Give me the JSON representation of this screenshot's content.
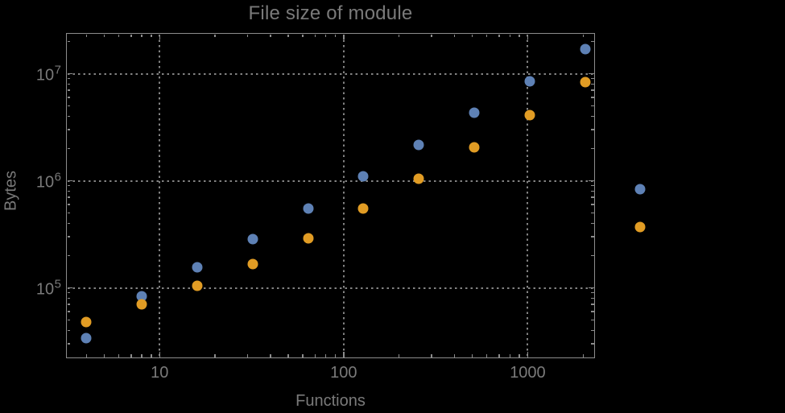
{
  "chart_data": {
    "type": "scatter",
    "title": "File size of module",
    "xlabel": "Functions",
    "ylabel": "Bytes",
    "xscale": "log",
    "yscale": "log",
    "xlim": [
      3.1,
      2320
    ],
    "ylim": [
      22000,
      24000000
    ],
    "grid": "dotted gridlines at decade ticks only",
    "legend": "none",
    "background_color": "#000000",
    "frame_color": "#8c8c8c",
    "grid_color": "#828282",
    "text_color": "#7a7a7a",
    "x_axis": {
      "major_ticks": [
        {
          "value": 10,
          "label": "10"
        },
        {
          "value": 100,
          "label": "100"
        },
        {
          "value": 1000,
          "label": "1000"
        }
      ],
      "minor_ticks": [
        4,
        5,
        6,
        7,
        8,
        9,
        20,
        30,
        40,
        50,
        60,
        70,
        80,
        90,
        200,
        300,
        400,
        500,
        600,
        700,
        800,
        900,
        2000
      ]
    },
    "y_axis": {
      "major_ticks": [
        {
          "value": 100000,
          "mantissa": "10",
          "exponent": "5"
        },
        {
          "value": 1000000,
          "mantissa": "10",
          "exponent": "6"
        },
        {
          "value": 10000000,
          "mantissa": "10",
          "exponent": "7"
        }
      ],
      "minor_ticks": [
        30000,
        40000,
        50000,
        60000,
        70000,
        80000,
        90000,
        200000,
        300000,
        400000,
        500000,
        600000,
        700000,
        800000,
        900000,
        2000000,
        3000000,
        4000000,
        5000000,
        6000000,
        7000000,
        8000000,
        9000000,
        20000000
      ]
    },
    "series": [
      {
        "name": "series-1-blue",
        "color": "#5e81b5",
        "points": [
          [
            4,
            34000
          ],
          [
            8,
            84000
          ],
          [
            16,
            155000
          ],
          [
            32,
            283000
          ],
          [
            64,
            555000
          ],
          [
            128,
            1110000
          ],
          [
            256,
            2180000
          ],
          [
            512,
            4360000
          ],
          [
            1024,
            8500000
          ],
          [
            2048,
            17100000
          ],
          [
            4096,
            840000
          ]
        ]
      },
      {
        "name": "series-2-orange",
        "color": "#e19c24",
        "points": [
          [
            4,
            48000
          ],
          [
            8,
            70000
          ],
          [
            16,
            105000
          ],
          [
            32,
            168000
          ],
          [
            64,
            288000
          ],
          [
            128,
            555000
          ],
          [
            256,
            1040000
          ],
          [
            512,
            2070000
          ],
          [
            1024,
            4140000
          ],
          [
            2048,
            8300000
          ],
          [
            4096,
            370000
          ]
        ]
      }
    ]
  }
}
